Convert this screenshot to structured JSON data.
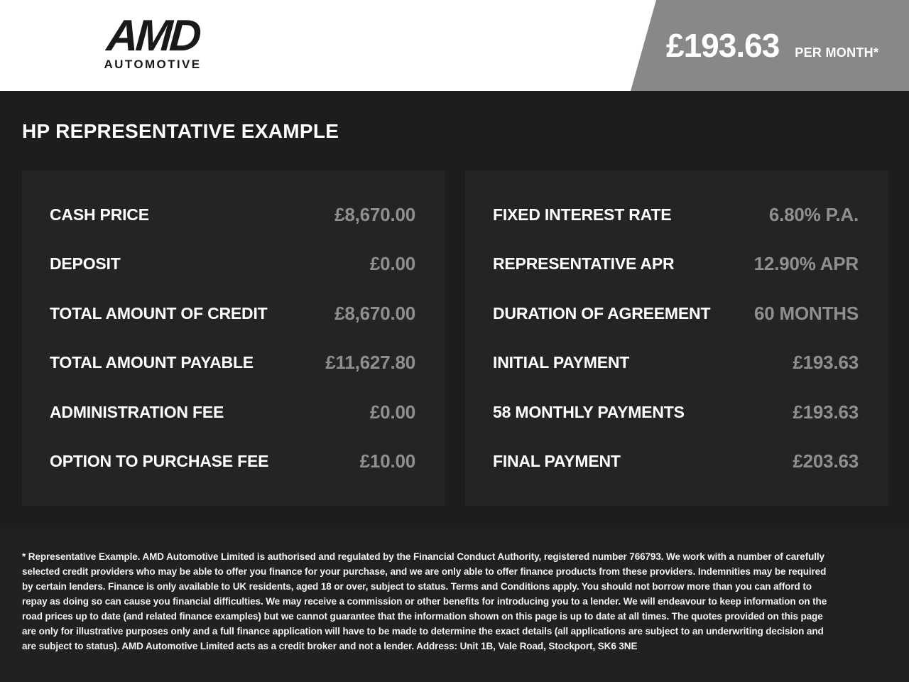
{
  "header": {
    "logo": {
      "name": "AMD",
      "subtitle": "AUTOMOTIVE"
    },
    "price_banner": {
      "amount": "£193.63",
      "period": "PER MONTH*"
    }
  },
  "main": {
    "heading": "HP REPRESENTATIVE EXAMPLE",
    "left_panel": {
      "rows": [
        {
          "label": "CASH PRICE",
          "value": "£8,670.00"
        },
        {
          "label": "DEPOSIT",
          "value": "£0.00"
        },
        {
          "label": "TOTAL AMOUNT OF CREDIT",
          "value": "£8,670.00"
        },
        {
          "label": "TOTAL AMOUNT PAYABLE",
          "value": "£11,627.80"
        },
        {
          "label": "ADMINISTRATION FEE",
          "value": "£0.00"
        },
        {
          "label": "OPTION TO PURCHASE FEE",
          "value": "£10.00"
        }
      ]
    },
    "right_panel": {
      "rows": [
        {
          "label": "FIXED INTEREST RATE",
          "value": "6.80% P.A."
        },
        {
          "label": "REPRESENTATIVE APR",
          "value": "12.90% APR"
        },
        {
          "label": "DURATION OF AGREEMENT",
          "value": "60 MONTHS"
        },
        {
          "label": "INITIAL PAYMENT",
          "value": "£193.63"
        },
        {
          "label": "58 MONTHLY PAYMENTS",
          "value": "£193.63"
        },
        {
          "label": "FINAL PAYMENT",
          "value": "£203.63"
        }
      ]
    }
  },
  "footer": {
    "disclaimer": "* Representative Example. AMD Automotive Limited is authorised and regulated by the Financial Conduct Authority, registered number 766793. We work with a number of carefully selected credit providers who may be able to offer you finance for your purchase, and we are only able to offer finance products from these providers. Indemnities may be required by certain lenders. Finance is only available to UK residents, aged 18 or over, subject to status. Terms and Conditions apply. You should not borrow more than you can afford to repay as doing so can cause you financial difficulties. We may receive a commission or other benefits for introducing you to a lender. We will endeavour to keep information on the road prices up to date (and related finance examples) but we cannot guarantee that the information shown on this page is up to date at all times. The quotes provided on this page are only for illustrative purposes only and a full finance application will have to be made to determine the exact details (all applications are subject to an underwriting decision and are subject to status). AMD Automotive Limited acts as a credit broker and not a lender. Address: Unit 1B, Vale Road, Stockport, SK6 3NE"
  },
  "colors": {
    "header_bg": "#ffffff",
    "banner_bg": "#888888",
    "page_bg": "#1d1d1d",
    "panel_bg": "#242424",
    "footer_bg": "#212121",
    "label_text": "#ffffff",
    "value_text": "#8f8f8f"
  }
}
